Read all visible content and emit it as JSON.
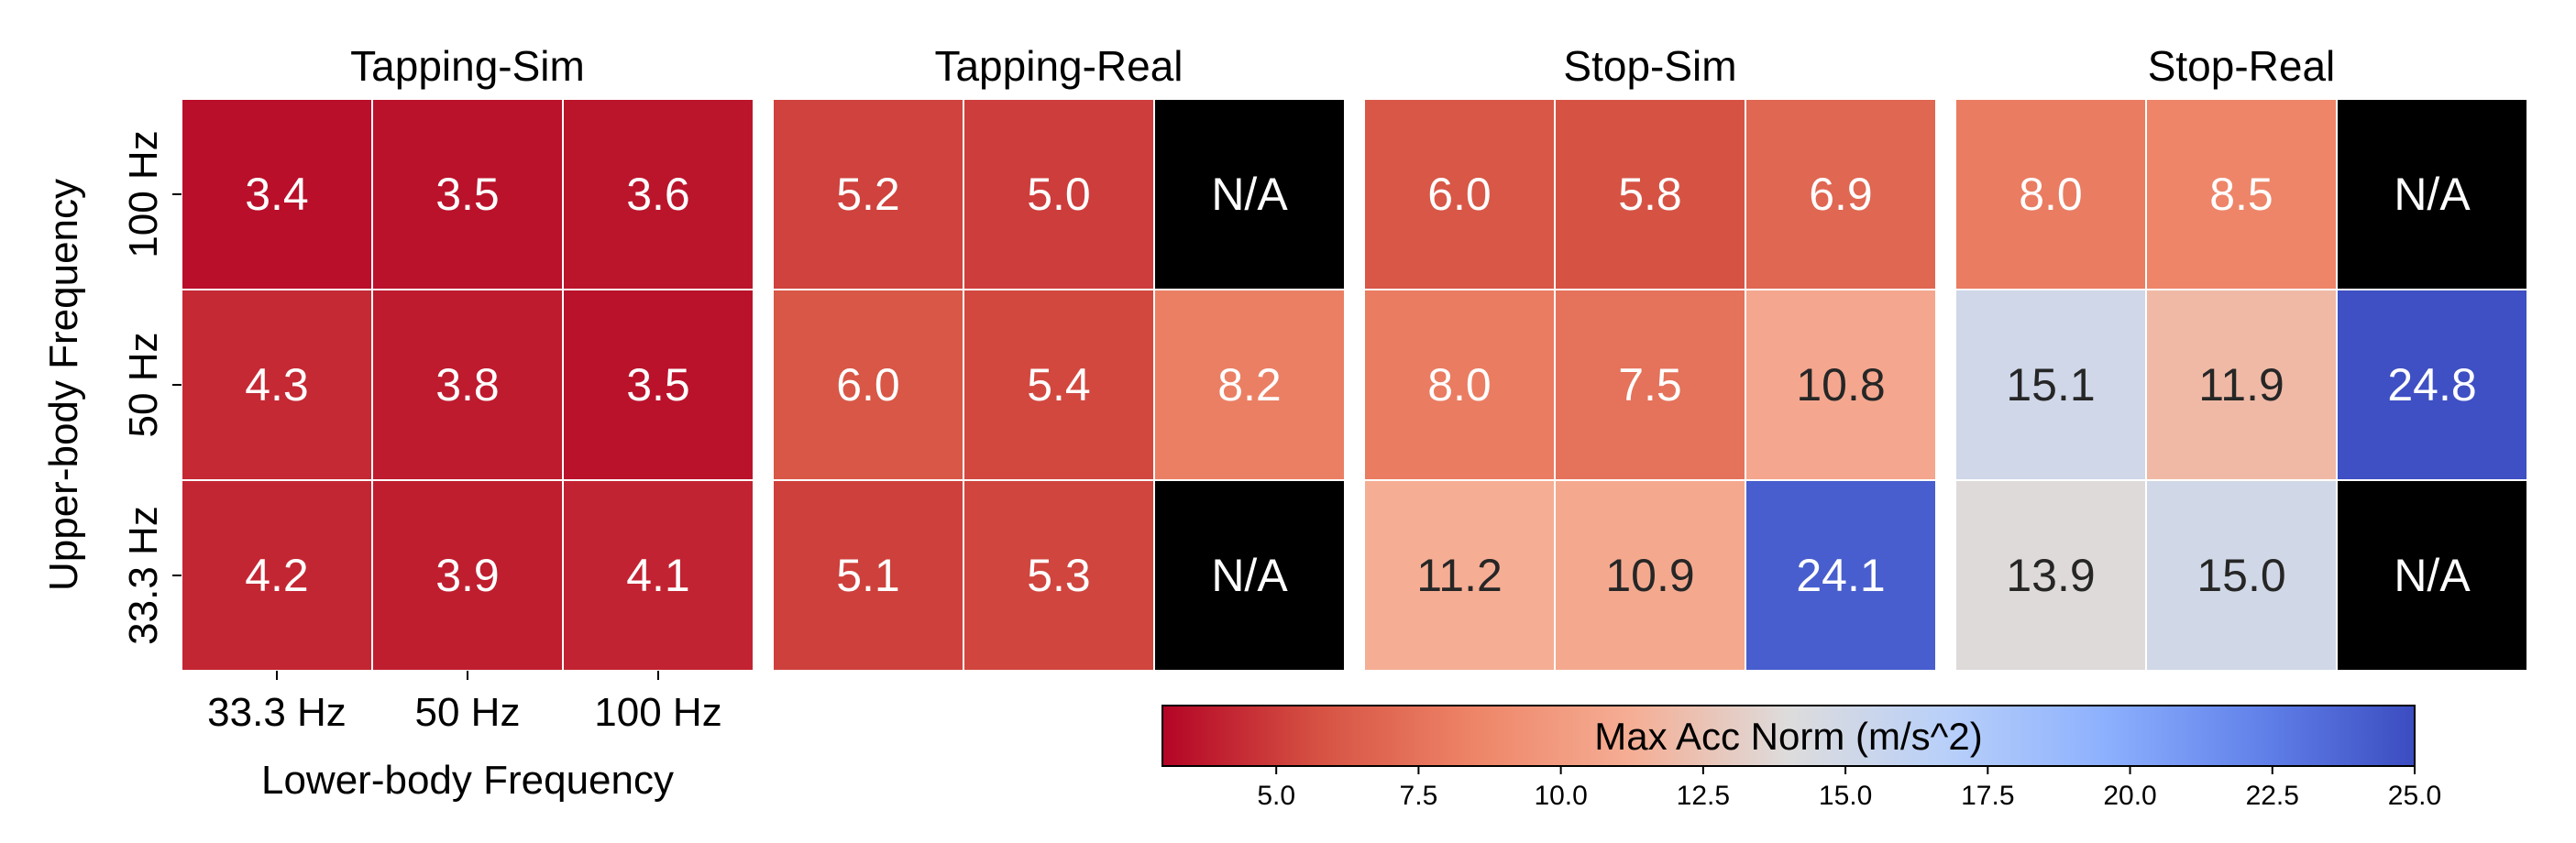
{
  "chart_data": {
    "type": "heatmap",
    "panels": [
      {
        "title": "Tapping-Sim",
        "rows": [
          "100 Hz",
          "50 Hz",
          "33.3 Hz"
        ],
        "cols": [
          "33.3 Hz",
          "50 Hz",
          "100 Hz"
        ],
        "values": [
          [
            3.4,
            3.5,
            3.6
          ],
          [
            4.3,
            3.8,
            3.5
          ],
          [
            4.2,
            3.9,
            4.1
          ]
        ]
      },
      {
        "title": "Tapping-Real",
        "rows": [
          "100 Hz",
          "50 Hz",
          "33.3 Hz"
        ],
        "cols": [
          "33.3 Hz",
          "50 Hz",
          "100 Hz"
        ],
        "values": [
          [
            5.2,
            5.0,
            null
          ],
          [
            6.0,
            5.4,
            8.2
          ],
          [
            5.1,
            5.3,
            null
          ]
        ]
      },
      {
        "title": "Stop-Sim",
        "rows": [
          "100 Hz",
          "50 Hz",
          "33.3 Hz"
        ],
        "cols": [
          "33.3 Hz",
          "50 Hz",
          "100 Hz"
        ],
        "values": [
          [
            6.0,
            5.8,
            6.9
          ],
          [
            8.0,
            7.5,
            10.8
          ],
          [
            11.2,
            10.9,
            24.1
          ]
        ]
      },
      {
        "title": "Stop-Real",
        "rows": [
          "100 Hz",
          "50 Hz",
          "33.3 Hz"
        ],
        "cols": [
          "33.3 Hz",
          "50 Hz",
          "100 Hz"
        ],
        "values": [
          [
            8.0,
            8.5,
            null
          ],
          [
            15.1,
            11.9,
            24.8
          ],
          [
            13.9,
            15.0,
            null
          ]
        ]
      }
    ],
    "missing_label": "N/A",
    "xlabel": "Lower-body Frequency",
    "ylabel": "Upper-body Frequency",
    "x_tick_labels": [
      "33.3 Hz",
      "50 Hz",
      "100 Hz"
    ],
    "y_tick_labels": [
      "100 Hz",
      "50 Hz",
      "33.3 Hz"
    ],
    "colorbar": {
      "label": "Max Acc Norm (m/s^2)",
      "range": [
        3.0,
        25.0
      ],
      "colormap": "coolwarm_r",
      "orientation": "horizontal",
      "ticks": [
        "5.0",
        "7.5",
        "10.0",
        "12.5",
        "15.0",
        "17.5",
        "20.0",
        "22.5",
        "25.0"
      ]
    },
    "missing_color": "#000000",
    "grid_line_color": "#ffffff"
  }
}
